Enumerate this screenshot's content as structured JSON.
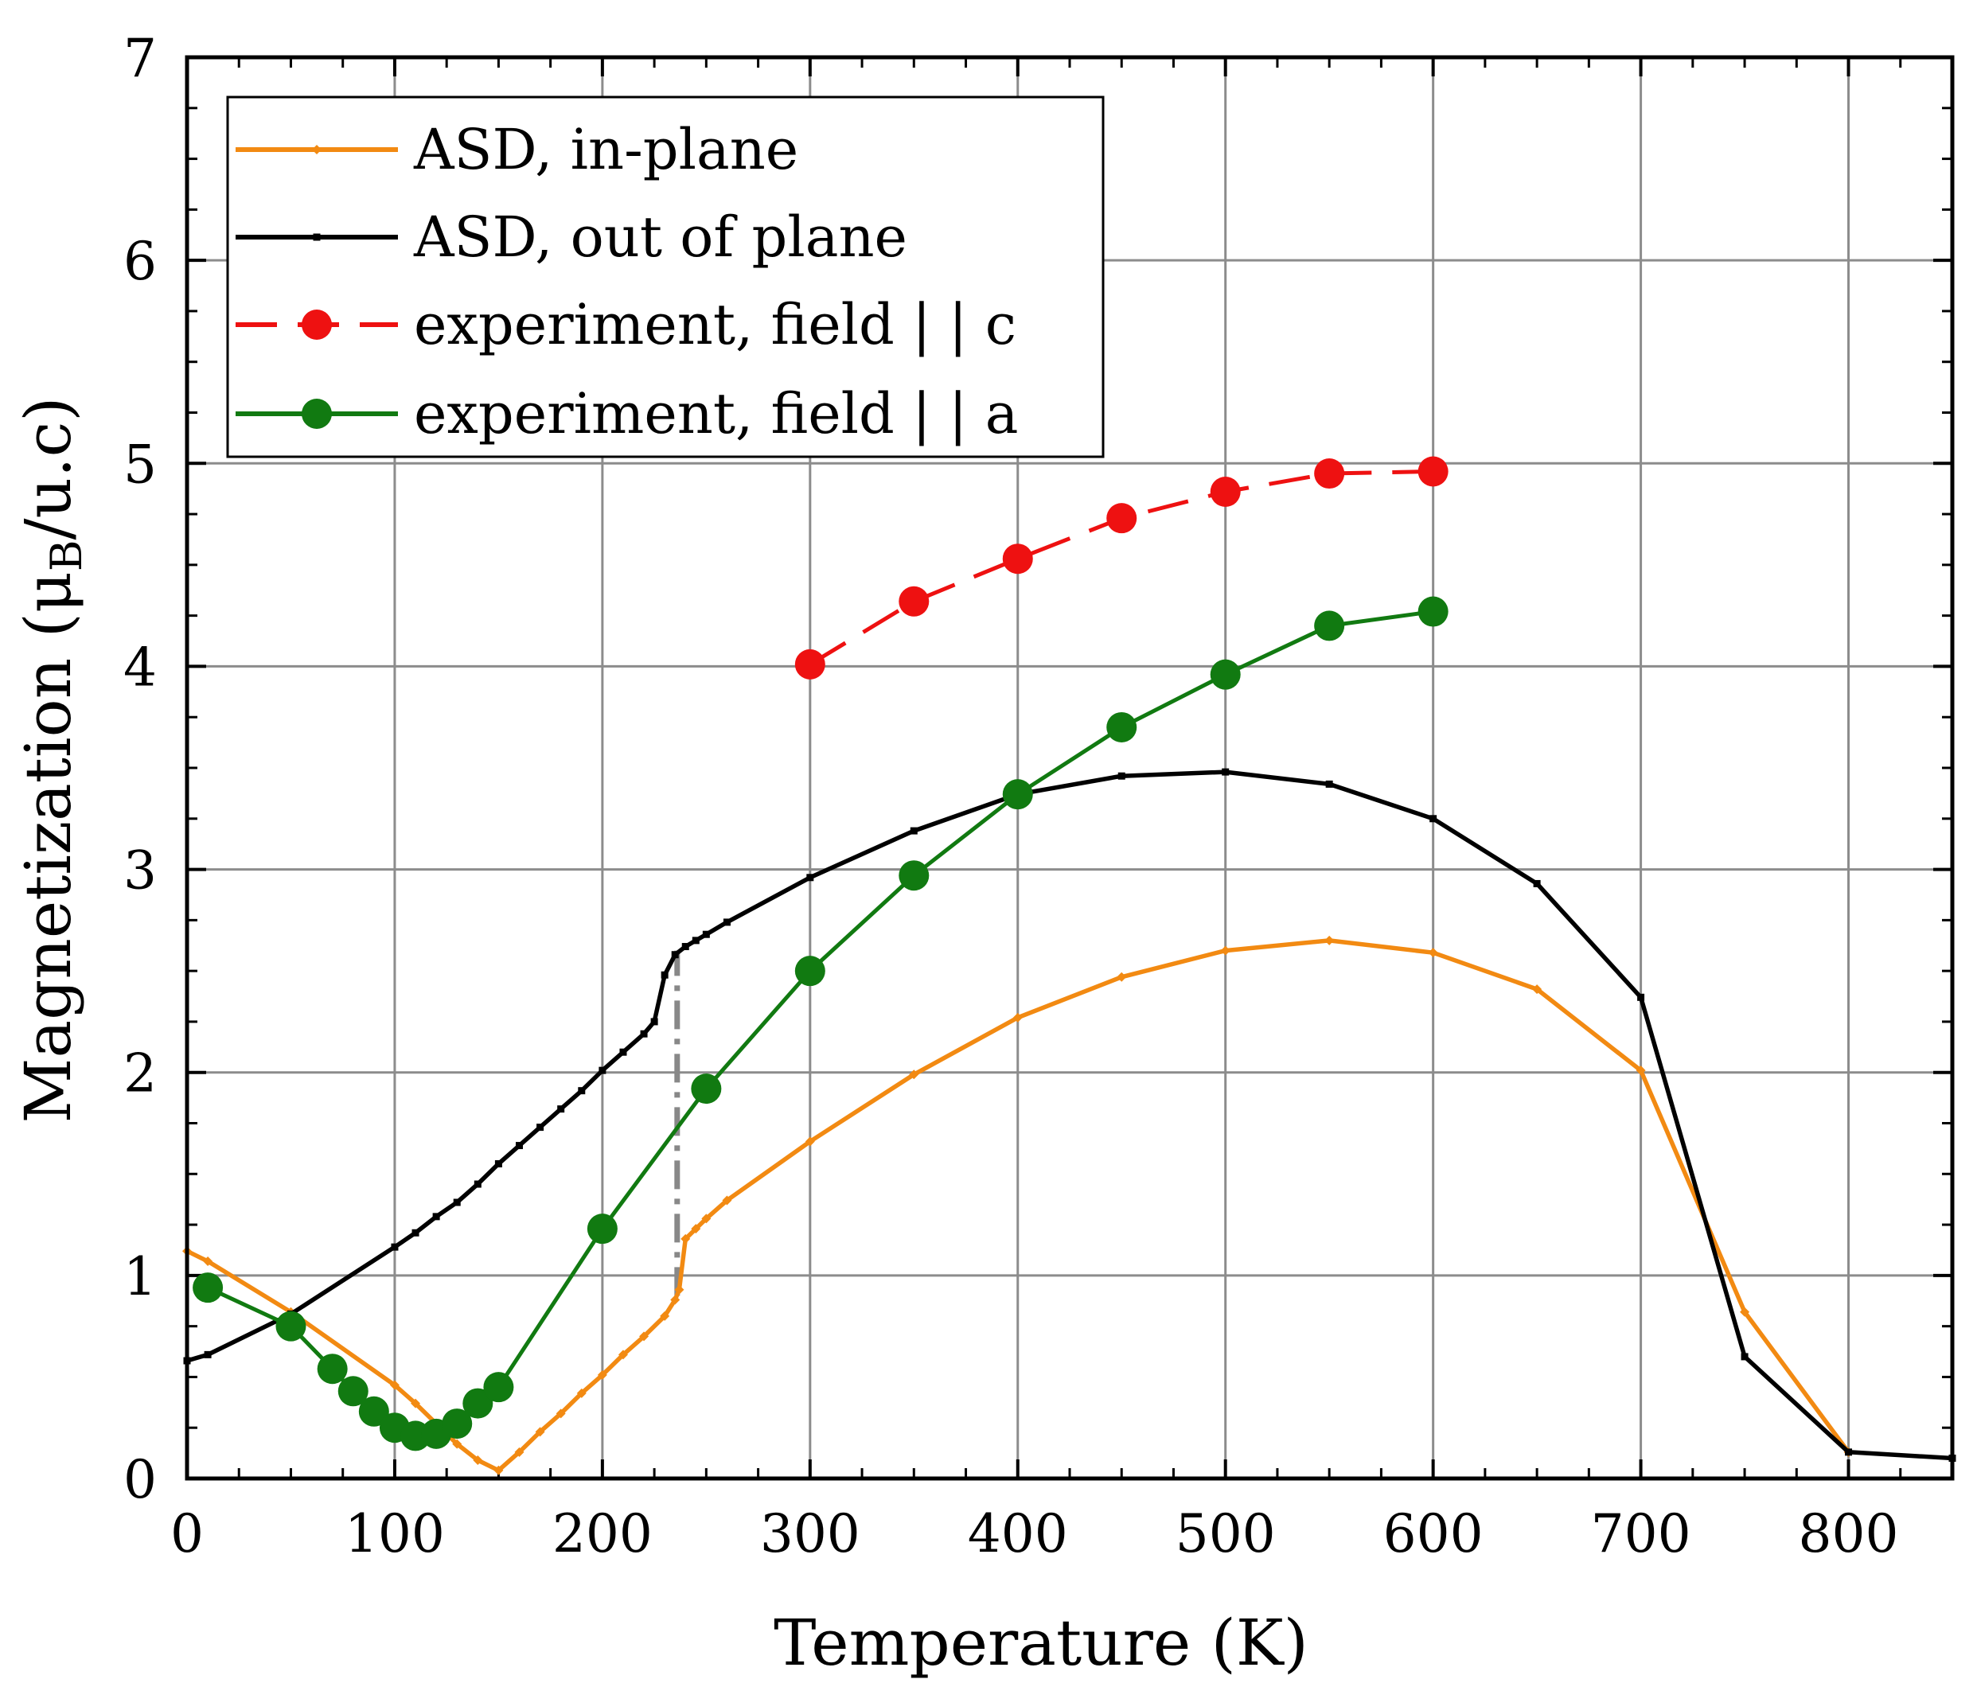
{
  "chart_data": {
    "type": "line",
    "title": "",
    "xlabel": "Temperature (K)",
    "ylabel": {
      "main": "Magnetization (μ",
      "sub": "B",
      "tail": "/u.c)"
    },
    "xlim": [
      0,
      850
    ],
    "ylim": [
      0,
      7
    ],
    "xticks": [
      0,
      100,
      200,
      300,
      400,
      500,
      600,
      700,
      800
    ],
    "yticks": [
      0,
      1,
      2,
      3,
      4,
      5,
      6,
      7
    ],
    "grid": true,
    "legend_position": "top-left",
    "series": [
      {
        "name": "ASD, in-plane",
        "color": "#f28a12",
        "style": "solid",
        "marker": "small-diamond",
        "x": [
          0,
          10,
          50,
          100,
          110,
          120,
          130,
          140,
          150,
          160,
          170,
          180,
          190,
          200,
          210,
          220,
          230,
          235,
          237,
          240,
          245,
          250,
          260,
          300,
          350,
          400,
          450,
          500,
          550,
          600,
          650,
          700,
          750,
          800
        ],
        "y": [
          1.12,
          1.07,
          0.82,
          0.46,
          0.37,
          0.27,
          0.17,
          0.09,
          0.04,
          0.13,
          0.23,
          0.32,
          0.42,
          0.51,
          0.61,
          0.7,
          0.8,
          0.88,
          0.93,
          1.18,
          1.23,
          1.28,
          1.37,
          1.66,
          1.99,
          2.27,
          2.47,
          2.6,
          2.65,
          2.59,
          2.41,
          2.01,
          0.82,
          0.13
        ]
      },
      {
        "name": "ASD, out of plane",
        "color": "#000000",
        "style": "solid",
        "marker": "small-square",
        "x": [
          0,
          10,
          50,
          100,
          110,
          120,
          130,
          140,
          150,
          160,
          170,
          180,
          190,
          200,
          210,
          220,
          225,
          230,
          235,
          240,
          245,
          250,
          260,
          300,
          350,
          400,
          450,
          500,
          550,
          600,
          650,
          700,
          750,
          800,
          850
        ],
        "y": [
          0.58,
          0.61,
          0.81,
          1.14,
          1.21,
          1.29,
          1.36,
          1.45,
          1.55,
          1.64,
          1.73,
          1.82,
          1.91,
          2.01,
          2.1,
          2.19,
          2.25,
          2.48,
          2.58,
          2.62,
          2.65,
          2.68,
          2.74,
          2.96,
          3.19,
          3.37,
          3.46,
          3.48,
          3.42,
          3.25,
          2.93,
          2.37,
          0.6,
          0.13,
          0.1
        ]
      },
      {
        "name": "experiment, field | | c",
        "color": "#ee1111",
        "style": "dashed",
        "marker": "circle",
        "x": [
          300,
          350,
          400,
          450,
          500,
          550,
          600
        ],
        "y": [
          4.01,
          4.32,
          4.53,
          4.73,
          4.86,
          4.95,
          4.96
        ]
      },
      {
        "name": "experiment, field | | a",
        "color": "#117a11",
        "style": "solid",
        "marker": "circle",
        "x": [
          10,
          50,
          70,
          80,
          90,
          100,
          110,
          120,
          130,
          140,
          150,
          200,
          250,
          300,
          350,
          400,
          450,
          500,
          550,
          600
        ],
        "y": [
          0.94,
          0.75,
          0.54,
          0.43,
          0.33,
          0.25,
          0.21,
          0.22,
          0.27,
          0.37,
          0.45,
          1.23,
          1.92,
          2.5,
          2.97,
          3.37,
          3.7,
          3.96,
          4.2,
          4.27
        ]
      }
    ],
    "annotations": [
      {
        "name": "transition-marker",
        "type": "vertical-dash-dot",
        "color": "#888888",
        "x": 236,
        "y_from": 0.9,
        "y_to": 2.6
      }
    ]
  }
}
